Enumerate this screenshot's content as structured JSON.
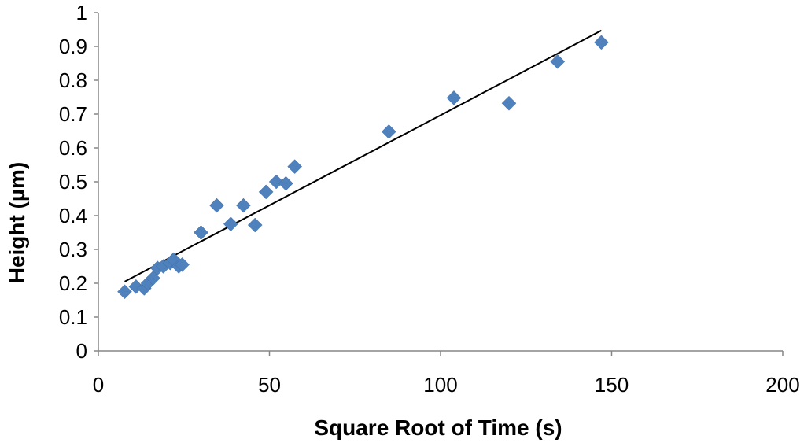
{
  "chart_data": {
    "type": "scatter",
    "title": "",
    "xlabel": "Square Root of Time (s)",
    "ylabel": "Height (µm)",
    "xlim": [
      0,
      200
    ],
    "ylim": [
      0,
      1
    ],
    "x_ticks": [
      "0",
      "50",
      "100",
      "150",
      "200"
    ],
    "y_ticks": [
      "0",
      "0.1",
      "0.2",
      "0.3",
      "0.4",
      "0.5",
      "0.6",
      "0.7",
      "0.8",
      "0.9",
      "1"
    ],
    "grid": false,
    "legend": "none",
    "marker_color": "#4F81BD",
    "series": [
      {
        "marker": "diamond",
        "x": [
          7.7,
          11,
          13.4,
          14.5,
          16,
          17.3,
          19,
          21,
          22,
          23.5,
          24.5,
          30,
          34.6,
          38.7,
          42.4,
          45.8,
          49,
          52,
          54.8,
          57.4,
          84.9,
          103.9,
          120,
          134.2,
          147
        ],
        "y": [
          0.175,
          0.19,
          0.185,
          0.2,
          0.215,
          0.245,
          0.25,
          0.26,
          0.27,
          0.25,
          0.255,
          0.35,
          0.43,
          0.375,
          0.43,
          0.372,
          0.47,
          0.5,
          0.495,
          0.545,
          0.648,
          0.748,
          0.732,
          0.855,
          0.912
        ]
      }
    ],
    "trendline": {
      "x": [
        7.7,
        147
      ],
      "y": [
        0.205,
        0.947
      ],
      "color": "#000000"
    }
  }
}
